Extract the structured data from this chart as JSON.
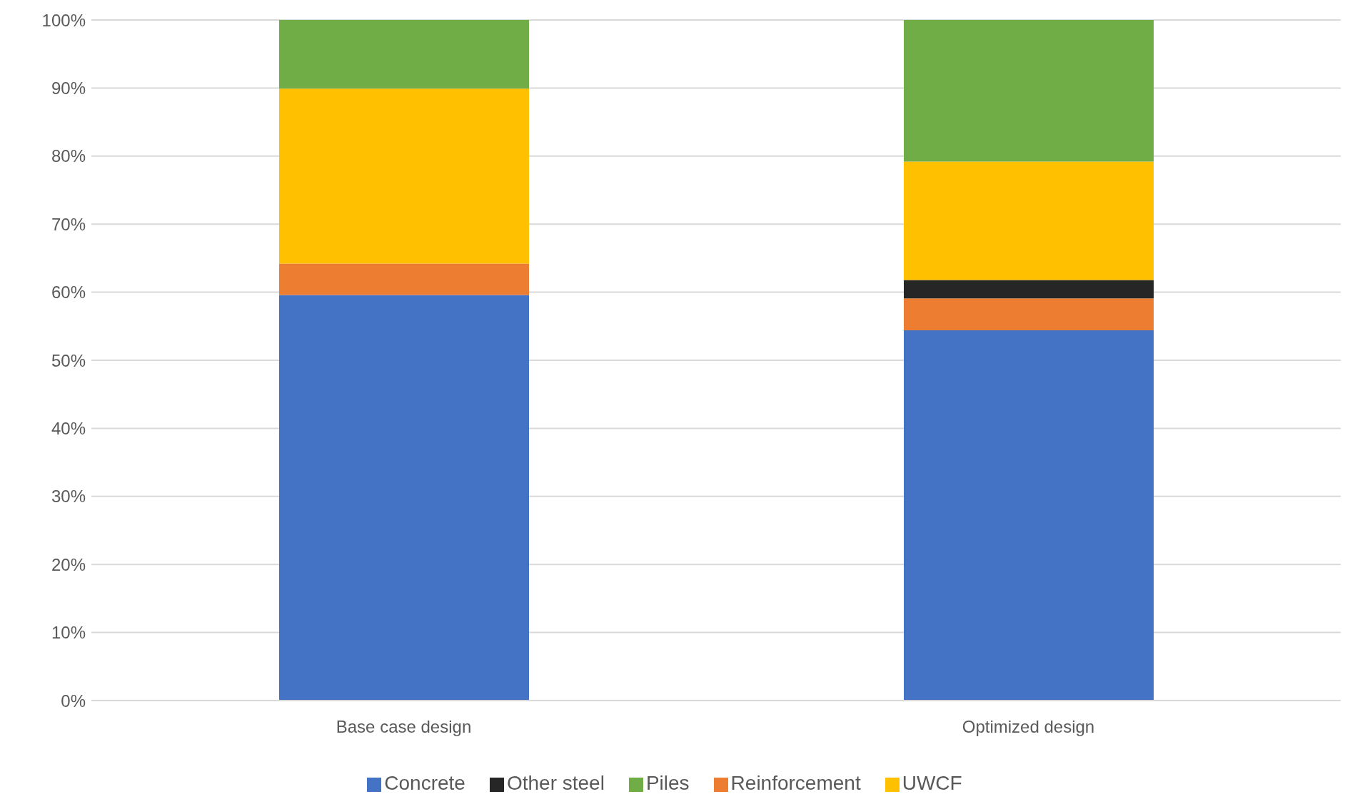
{
  "chart_data": {
    "type": "bar",
    "stacked": true,
    "categories": [
      "Base case design",
      "Optimized design"
    ],
    "series": [
      {
        "name": "Concrete",
        "color": "#4472c4",
        "values": [
          59.6,
          54.4
        ]
      },
      {
        "name": "Reinforcement",
        "color": "#ed7d31",
        "values": [
          4.6,
          4.7
        ]
      },
      {
        "name": "Other steel",
        "color": "#262626",
        "values": [
          0,
          2.7
        ]
      },
      {
        "name": "UWCF",
        "color": "#ffc000",
        "values": [
          25.7,
          17.4
        ]
      },
      {
        "name": "Piles",
        "color": "#70ad47",
        "values": [
          10.1,
          20.8
        ]
      }
    ],
    "ylim": [
      0,
      100
    ],
    "yticks": [
      {
        "value": 0,
        "label": "0%"
      },
      {
        "value": 10,
        "label": "10%"
      },
      {
        "value": 20,
        "label": "20%"
      },
      {
        "value": 30,
        "label": "30%"
      },
      {
        "value": 40,
        "label": "40%"
      },
      {
        "value": 50,
        "label": "50%"
      },
      {
        "value": 60,
        "label": "60%"
      },
      {
        "value": 70,
        "label": "70%"
      },
      {
        "value": 80,
        "label": "80%"
      },
      {
        "value": 90,
        "label": "90%"
      },
      {
        "value": 100,
        "label": "100%"
      }
    ],
    "grid": "y",
    "legend": "bottom"
  }
}
